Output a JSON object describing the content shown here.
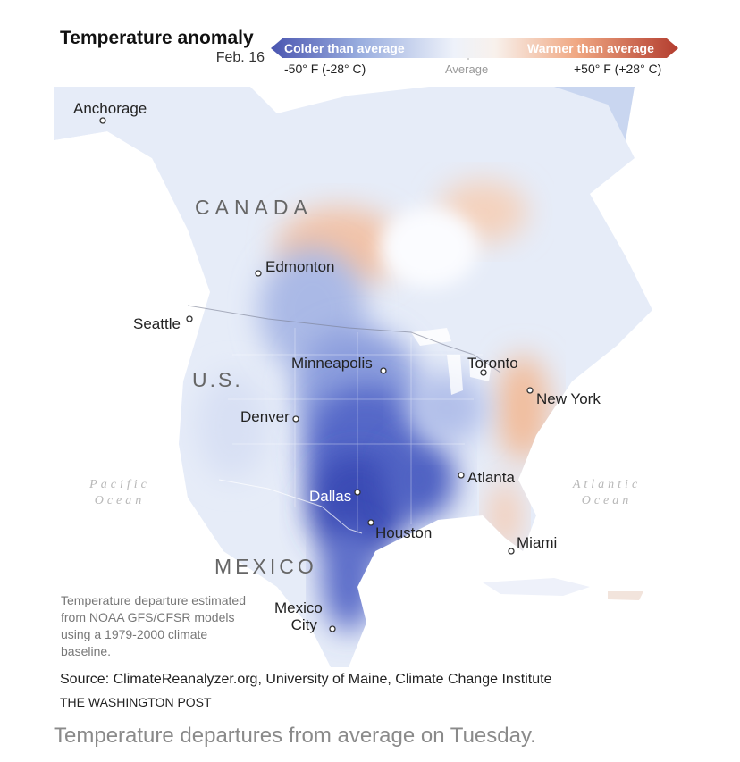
{
  "title": "Temperature anomaly",
  "date": "Feb. 16",
  "legend": {
    "cold_label": "Colder than average",
    "warm_label": "Warmer than average",
    "min_label": "-50° F (-28° C)",
    "mid_label": "Average",
    "max_label": "+50° F (+28° C)",
    "colors": {
      "cold_end": "#4a55b0",
      "neutral": "#f4f6fb",
      "warm_end": "#b33d2f",
      "deep_cold": "#2f3fa8",
      "mild_warm": "#f1b48f"
    }
  },
  "map": {
    "countries": {
      "canada": "CANADA",
      "us": "U.S.",
      "mexico": "MEXICO"
    },
    "oceans": {
      "pacific_line1": "Pacific",
      "pacific_line2": "Ocean",
      "atlantic_line1": "Atlantic",
      "atlantic_line2": "Ocean"
    },
    "cities": {
      "anchorage": "Anchorage",
      "edmonton": "Edmonton",
      "seattle": "Seattle",
      "minneapolis": "Minneapolis",
      "toronto": "Toronto",
      "new_york": "New York",
      "denver": "Denver",
      "atlanta": "Atlanta",
      "dallas": "Dallas",
      "houston": "Houston",
      "miami": "Miami",
      "mexico_city_line1": "Mexico",
      "mexico_city_line2": "City"
    }
  },
  "note": "Temperature departure estimated from NOAA GFS/CFSR models using a 1979-2000 climate baseline.",
  "source": "Source: ClimateReanalyzer.org, University of Maine, Climate Change Institute",
  "credit": "THE WASHINGTON POST",
  "caption": "Temperature departures from average on Tuesday."
}
